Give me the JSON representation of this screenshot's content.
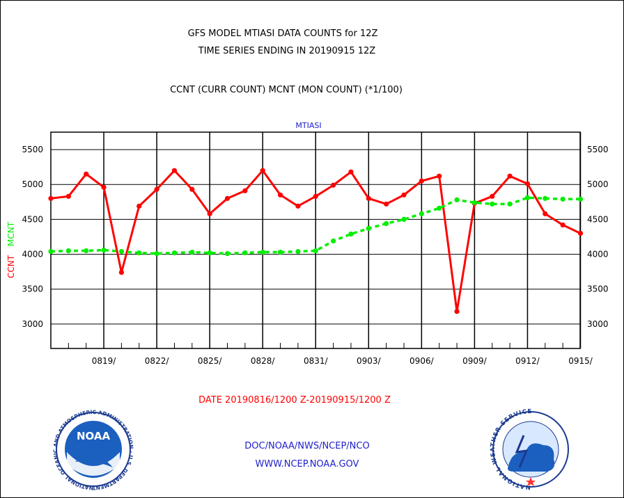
{
  "header": {
    "title_line1": "GFS MODEL MTIASI DATA COUNTS for 12Z",
    "title_line2": "TIME SERIES ENDING IN 20190915 12Z",
    "subtitle": "CCNT (CURR COUNT) MCNT (MON COUNT) (*1/100)"
  },
  "footer": {
    "org_line": "DOC/NOAA/NWS/NCEP/NCO",
    "url_line": "WWW.NCEP.NOAA.GOV",
    "left_logo_text": "NOAA",
    "left_logo_ring_text": "NATIONAL OCEANIC AND ATMOSPHERIC ADMINISTRATION · U.S. DEPARTMENT OF COMMERCE",
    "right_logo_ring_text": "NATIONAL WEATHER SERVICE"
  },
  "colors": {
    "ccnt": "#ff0000",
    "mcnt": "#00ee00",
    "accent_blue": "#2020cc"
  },
  "chart_data": {
    "type": "line",
    "panel_label": "MTIASI",
    "xlabel": "DATE 20190816/1200 Z-20190915/1200 Z",
    "ylabel_ccnt": "CCNT",
    "ylabel_mcnt": "MCNT",
    "ylim": [
      2650,
      5750
    ],
    "yticks": [
      3000,
      3500,
      4000,
      4500,
      5000,
      5500
    ],
    "x_tick_labels": [
      "0819/",
      "0822/",
      "0825/",
      "0828/",
      "0831/",
      "0903/",
      "0906/",
      "0909/",
      "0912/",
      "0915/"
    ],
    "x_days": [
      "0816",
      "0817",
      "0818",
      "0819",
      "0820",
      "0821",
      "0822",
      "0823",
      "0824",
      "0825",
      "0826",
      "0827",
      "0828",
      "0829",
      "0830",
      "0831",
      "0901",
      "0902",
      "0903",
      "0904",
      "0905",
      "0906",
      "0907",
      "0908",
      "0909",
      "0910",
      "0911",
      "0912",
      "0913",
      "0914",
      "0915"
    ],
    "grid": true,
    "series": [
      {
        "name": "CCNT",
        "color": "#ff0000",
        "values": [
          4800,
          4830,
          5150,
          4960,
          3740,
          4690,
          4930,
          5200,
          4930,
          4580,
          4800,
          4910,
          5200,
          4850,
          4690,
          4830,
          4990,
          5180,
          4800,
          4720,
          4850,
          5050,
          5120,
          3180,
          4730,
          4830,
          5120,
          5010,
          4580,
          4420,
          4300
        ]
      },
      {
        "name": "MCNT",
        "color": "#00ee00",
        "values": [
          4040,
          4050,
          4050,
          4060,
          4040,
          4020,
          4010,
          4020,
          4030,
          4020,
          4010,
          4020,
          4030,
          4030,
          4040,
          4050,
          4190,
          4290,
          4370,
          4440,
          4500,
          4580,
          4660,
          4780,
          4740,
          4720,
          4720,
          4810,
          4800,
          4790,
          4790
        ]
      }
    ]
  }
}
